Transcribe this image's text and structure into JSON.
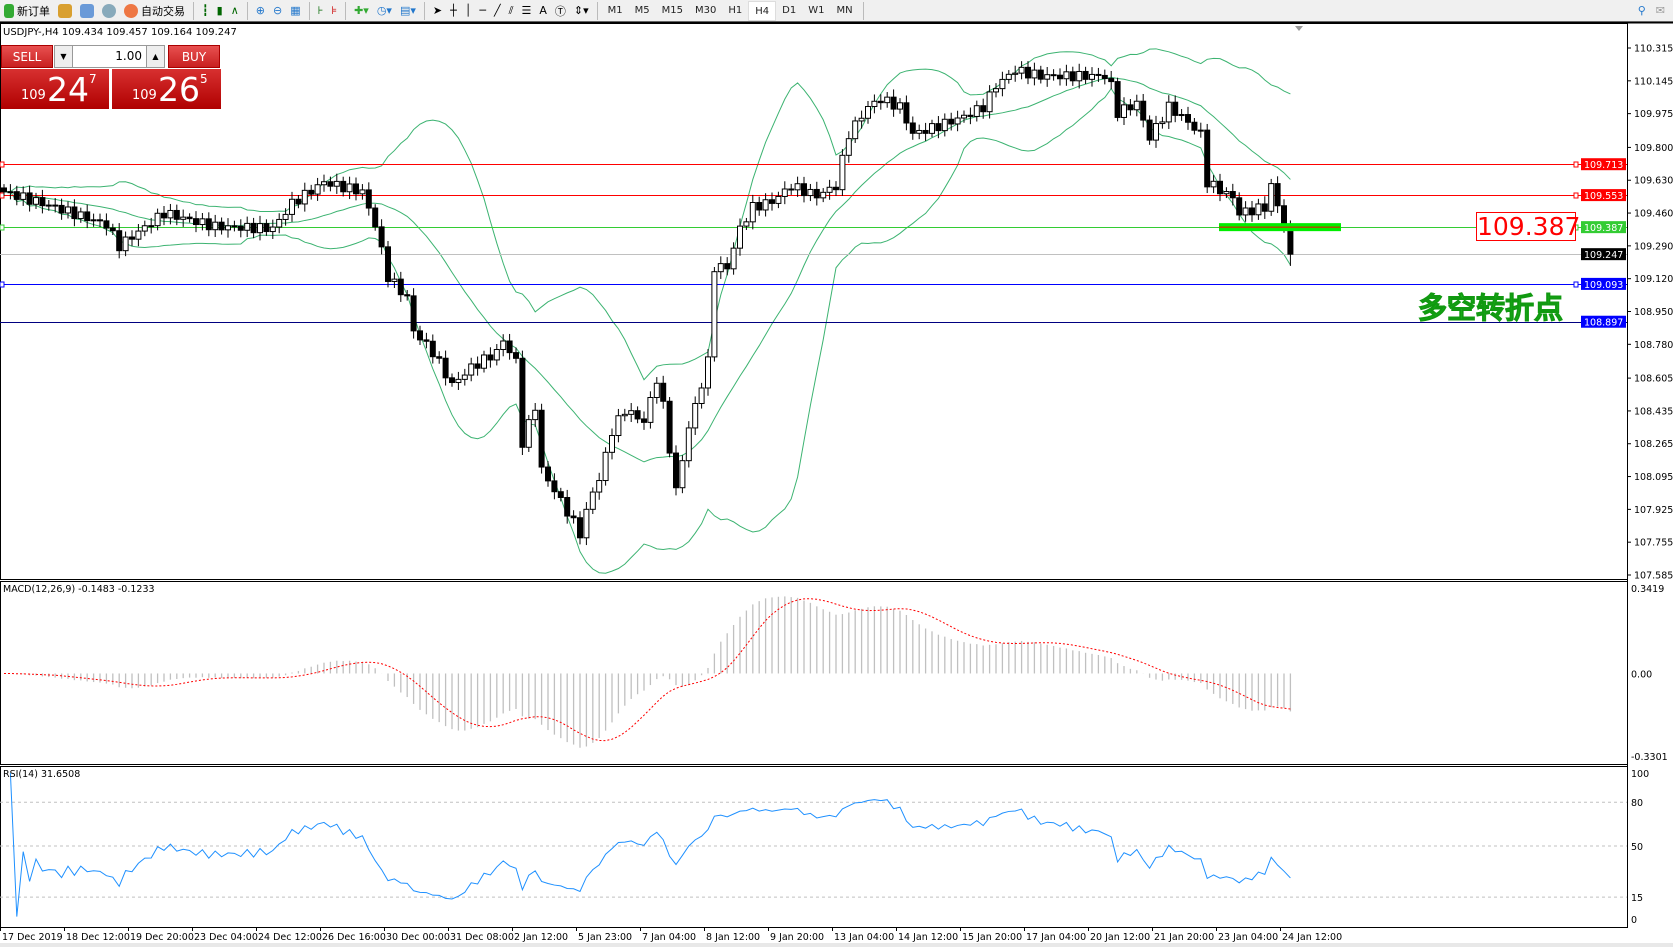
{
  "toolbar": {
    "new_order": "新订单",
    "auto_trading": "自动交易",
    "icons": [
      "new-order-icon",
      "market-watch-icon",
      "navigator-icon",
      "signals-icon",
      "auto-trading-icon",
      "bar-chart-icon",
      "candlestick-icon",
      "line-chart-icon",
      "zoom-in-icon",
      "zoom-out-icon",
      "tile-windows-icon",
      "chart-shift-icon",
      "autoscroll-icon",
      "indicators-icon",
      "periods-icon",
      "templates-icon",
      "cursor-icon",
      "crosshair-icon",
      "vertical-line-icon",
      "horizontal-line-icon",
      "trendline-icon",
      "fibonacci-icon",
      "fibo-fan-icon",
      "text-icon",
      "text-label-icon",
      "arrows-icon"
    ],
    "timeframes": [
      "M1",
      "M5",
      "M15",
      "M30",
      "H1",
      "H4",
      "D1",
      "W1",
      "MN"
    ],
    "active_timeframe": "H4"
  },
  "symbol_line": "USDJPY-,H4  109.434 109.457 109.164 109.247",
  "trade": {
    "sell": "SELL",
    "buy": "BUY",
    "lot": "1.00",
    "bid": {
      "small": "109",
      "big": "24",
      "pip": "7"
    },
    "ask": {
      "small": "109",
      "big": "26",
      "pip": "5"
    }
  },
  "annotations": {
    "pivot_price": "109.387",
    "pivot_text": "多空转折点"
  },
  "colors": {
    "bull": "#ffffff",
    "bear": "#000000",
    "bands": "#3cb371",
    "macd_hist": "#c0c0c0",
    "macd_signal": "#ff0000",
    "rsi": "#1e90ff",
    "pivot_bar": "#00ee00"
  },
  "chart_data": {
    "type": "candlestick",
    "symbol": "USDJPY-",
    "timeframe": "H4",
    "ylim": [
      107.585,
      110.315
    ],
    "price_ticks": [
      "110.315",
      "110.145",
      "109.975",
      "109.800",
      "109.630",
      "109.460",
      "109.290",
      "109.120",
      "108.950",
      "108.780",
      "108.605",
      "108.435",
      "108.265",
      "108.095",
      "107.925",
      "107.755",
      "107.585"
    ],
    "time_labels": [
      "17 Dec 2019",
      "18 Dec 12:00",
      "19 Dec 20:00",
      "23 Dec 04:00",
      "24 Dec 12:00",
      "26 Dec 16:00",
      "30 Dec 00:00",
      "31 Dec 08:00",
      "2 Jan 12:00",
      "5 Jan 23:00",
      "7 Jan 04:00",
      "8 Jan 12:00",
      "9 Jan 20:00",
      "13 Jan 04:00",
      "14 Jan 12:00",
      "15 Jan 20:00",
      "17 Jan 04:00",
      "20 Jan 12:00",
      "21 Jan 20:00",
      "23 Jan 04:00",
      "24 Jan 12:00"
    ],
    "price_path": [
      [
        0,
        109.57
      ],
      [
        8,
        109.49
      ],
      [
        16,
        109.4
      ],
      [
        18,
        109.29
      ],
      [
        25,
        109.46
      ],
      [
        33,
        109.39
      ],
      [
        42,
        109.38
      ],
      [
        45,
        109.51
      ],
      [
        50,
        109.62
      ],
      [
        56,
        109.57
      ],
      [
        58,
        109.4
      ],
      [
        60,
        109.13
      ],
      [
        63,
        109.02
      ],
      [
        64,
        108.85
      ],
      [
        67,
        108.74
      ],
      [
        70,
        108.57
      ],
      [
        73,
        108.66
      ],
      [
        77,
        108.74
      ],
      [
        78,
        108.8
      ],
      [
        80,
        108.69
      ],
      [
        81,
        108.27
      ],
      [
        83,
        108.46
      ],
      [
        84,
        108.13
      ],
      [
        87,
        107.97
      ],
      [
        90,
        107.8
      ],
      [
        92,
        108.02
      ],
      [
        93,
        108.08
      ],
      [
        95,
        108.33
      ],
      [
        97,
        108.44
      ],
      [
        100,
        108.38
      ],
      [
        102,
        108.6
      ],
      [
        103,
        108.46
      ],
      [
        105,
        108.02
      ],
      [
        107,
        108.35
      ],
      [
        108,
        108.46
      ],
      [
        110,
        108.69
      ],
      [
        111,
        109.18
      ],
      [
        113,
        109.18
      ],
      [
        115,
        109.38
      ],
      [
        117,
        109.49
      ],
      [
        120,
        109.52
      ],
      [
        123,
        109.6
      ],
      [
        127,
        109.55
      ],
      [
        130,
        109.6
      ],
      [
        132,
        109.87
      ],
      [
        135,
        110.01
      ],
      [
        137,
        110.05
      ],
      [
        140,
        110.01
      ],
      [
        142,
        109.87
      ],
      [
        145,
        109.9
      ],
      [
        150,
        109.96
      ],
      [
        153,
        110.01
      ],
      [
        155,
        110.12
      ],
      [
        158,
        110.2
      ],
      [
        162,
        110.17
      ],
      [
        167,
        110.17
      ],
      [
        172,
        110.17
      ],
      [
        173,
        110.12
      ],
      [
        174,
        109.98
      ],
      [
        177,
        110.03
      ],
      [
        179,
        109.85
      ],
      [
        182,
        110.01
      ],
      [
        184,
        109.96
      ],
      [
        187,
        109.87
      ],
      [
        188,
        109.62
      ],
      [
        192,
        109.54
      ],
      [
        193,
        109.46
      ],
      [
        197,
        109.49
      ],
      [
        198,
        109.6
      ],
      [
        200,
        109.4
      ],
      [
        201,
        109.247
      ]
    ],
    "hlines": [
      {
        "value": "109.713",
        "color": "#ff0000"
      },
      {
        "value": "109.553",
        "color": "#ff0000"
      },
      {
        "value": "109.387",
        "color": "#33cc33"
      },
      {
        "value": "109.247",
        "color": "#000000",
        "line": "#c0c0c0"
      },
      {
        "value": "109.093",
        "color": "#0000ff"
      },
      {
        "value": "108.897",
        "color": "#0000ff",
        "line": "#000080"
      }
    ],
    "bollinger": {
      "period": 20,
      "deviation": 2
    },
    "macd": {
      "title": "MACD(12,26,9) -0.1483 -0.1233",
      "ylim": [
        -0.3301,
        0.3419
      ],
      "ticks": [
        "0.3419",
        "0.00",
        "-0.3301"
      ]
    },
    "rsi": {
      "title": "RSI(14) 31.6508",
      "period": 14,
      "ylim": [
        0,
        100
      ],
      "ticks": [
        "100",
        "80",
        "50",
        "15",
        "0"
      ],
      "levels": [
        80,
        50,
        15
      ]
    }
  }
}
